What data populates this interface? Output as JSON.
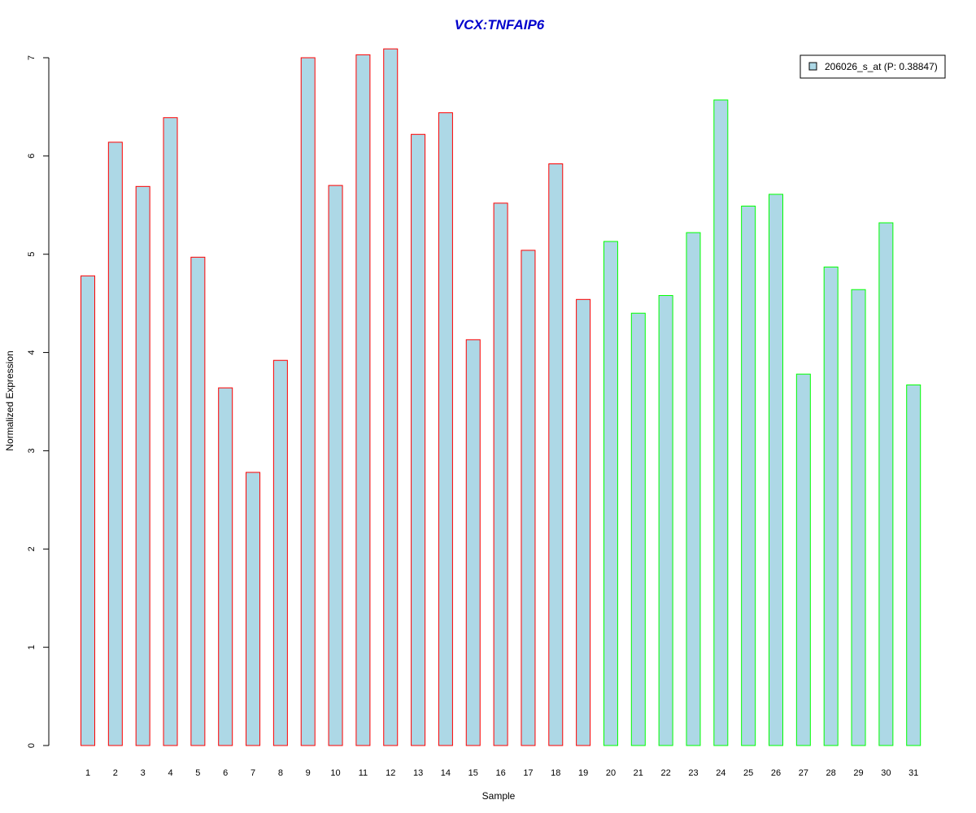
{
  "chart_data": {
    "type": "bar",
    "title": "VCX:TNFAIP6",
    "xlabel": "Sample",
    "ylabel": "Normalized Expression",
    "ylim": [
      0,
      7
    ],
    "y_ticks": [
      0,
      1,
      2,
      3,
      4,
      5,
      6,
      7
    ],
    "grid": false,
    "legend_position": "top-right",
    "categories": [
      "1",
      "2",
      "3",
      "4",
      "5",
      "6",
      "7",
      "8",
      "9",
      "10",
      "11",
      "12",
      "13",
      "14",
      "15",
      "16",
      "17",
      "18",
      "19",
      "20",
      "21",
      "22",
      "23",
      "24",
      "25",
      "26",
      "27",
      "28",
      "29",
      "30",
      "31"
    ],
    "series": [
      {
        "name": "206026_s_at (P: 0.38847)",
        "values": [
          4.78,
          6.14,
          5.69,
          6.39,
          4.97,
          3.64,
          2.78,
          3.92,
          7.0,
          5.7,
          7.03,
          7.09,
          6.22,
          6.44,
          4.13,
          5.52,
          5.04,
          5.92,
          4.54,
          5.13,
          4.4,
          4.58,
          5.22,
          6.57,
          5.49,
          5.61,
          3.78,
          4.87,
          4.64,
          5.32,
          3.67
        ]
      }
    ],
    "group_split_index": 19,
    "colors": {
      "fill": "#add8e6",
      "group1_border": "#ff0000",
      "group2_border": "#00ff00",
      "title": "#0000cc"
    }
  }
}
